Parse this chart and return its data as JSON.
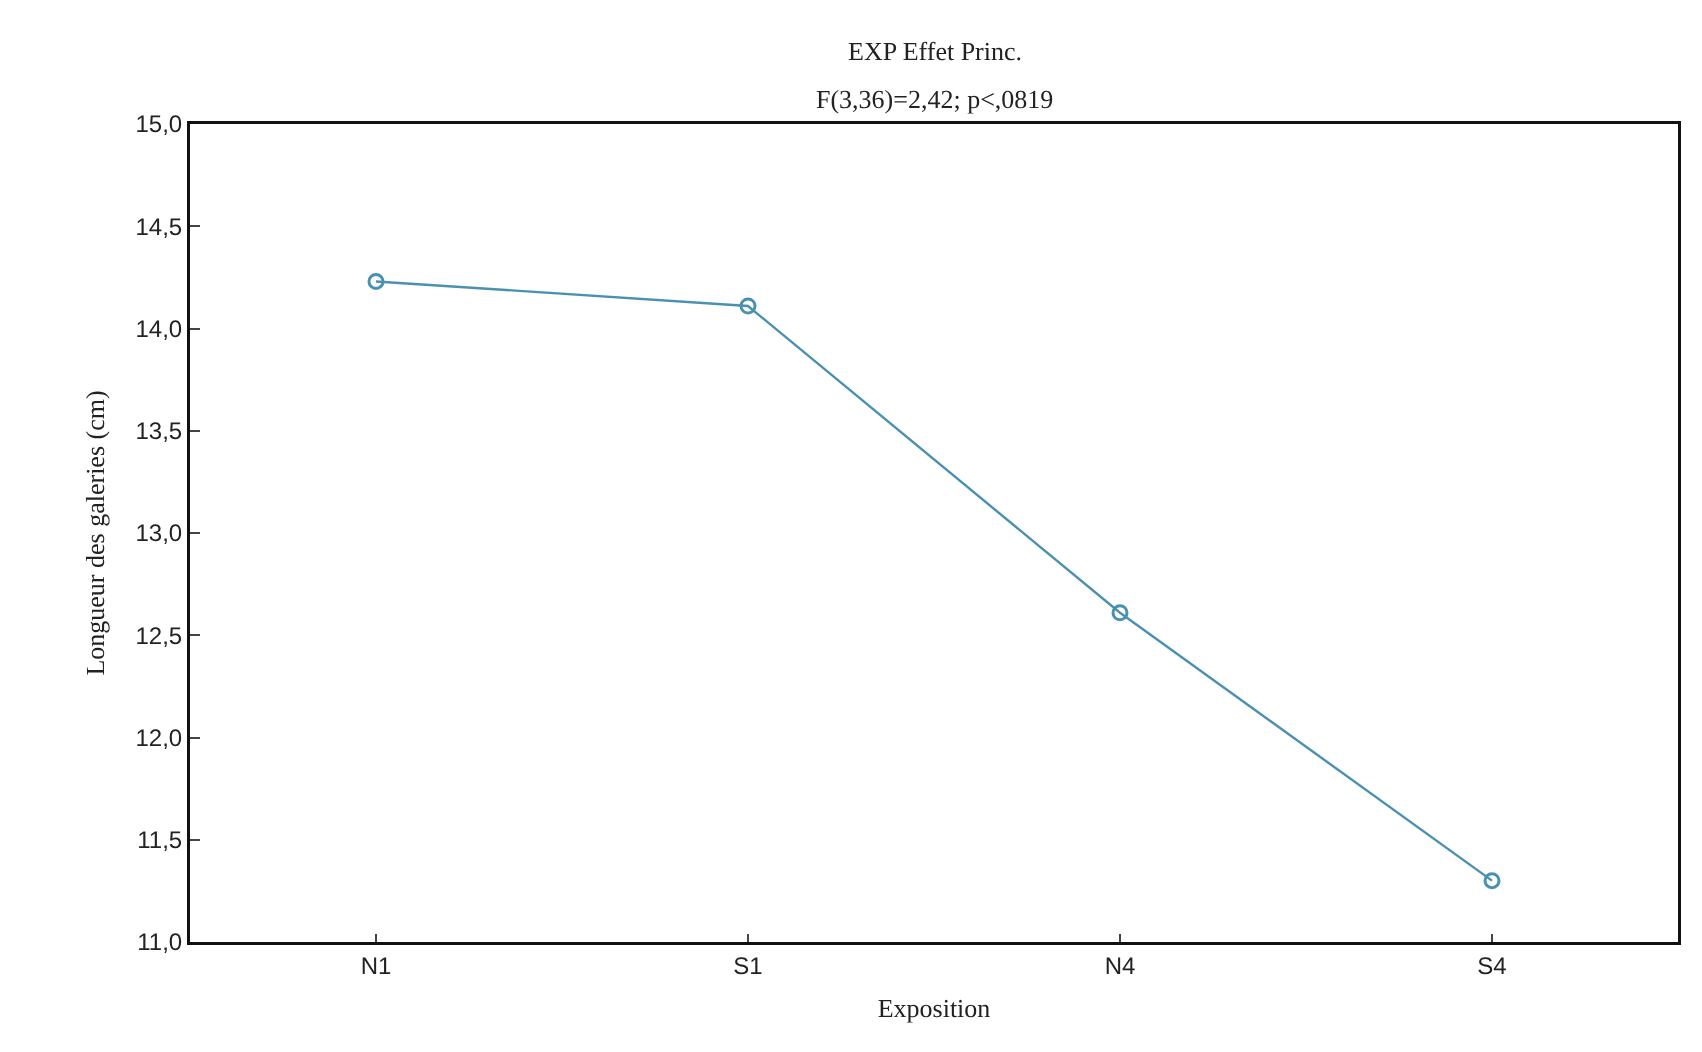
{
  "chart_data": {
    "type": "line",
    "title": "EXP Effet Princ.",
    "subtitle": "F(3,36)=2,42; p<,0819",
    "xlabel": "Exposition",
    "ylabel": "Longueur des galeries (cm)",
    "categories": [
      "N1",
      "S1",
      "N4",
      "S4"
    ],
    "series": [
      {
        "color": "#4a90b0",
        "values": [
          14.23,
          14.11,
          12.61,
          11.3
        ]
      }
    ],
    "ylim": [
      11,
      15
    ],
    "yticks": [
      {
        "value": 11,
        "label": "11,0"
      },
      {
        "value": 11.5,
        "label": "11,5"
      },
      {
        "value": 12,
        "label": "12,0"
      },
      {
        "value": 12.5,
        "label": "12,5"
      },
      {
        "value": 13,
        "label": "13,0"
      },
      {
        "value": 13.5,
        "label": "13,5"
      },
      {
        "value": 14,
        "label": "14,0"
      },
      {
        "value": 14.5,
        "label": "14,5"
      },
      {
        "value": 15,
        "label": "15,0"
      }
    ],
    "grid": false,
    "marker": "circle",
    "line_style": "solid"
  }
}
